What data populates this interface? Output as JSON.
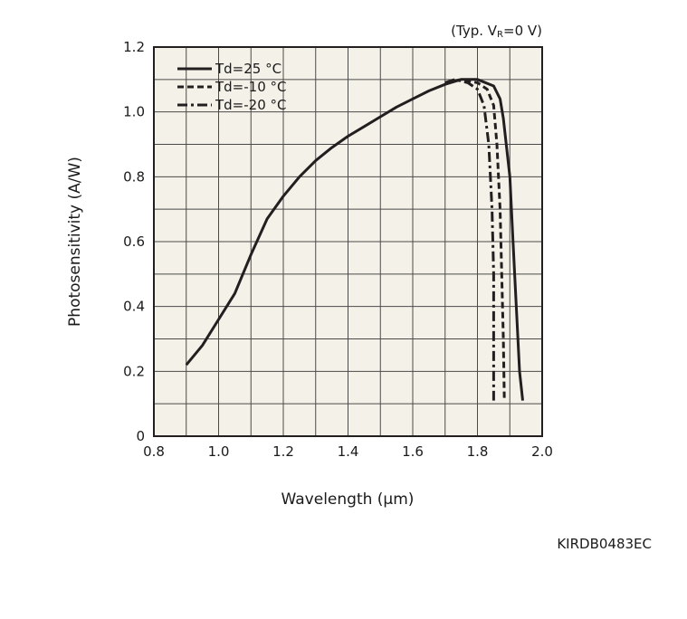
{
  "chart_data": {
    "type": "line",
    "title": "",
    "condition": {
      "prefix": "(Typ. V",
      "subscript": "R",
      "suffix": "=0 V)"
    },
    "xlabel": "Wavelength (µm)",
    "ylabel": "Photosensitivity (A/W)",
    "xlim": [
      0.8,
      2.0
    ],
    "ylim": [
      0,
      1.2
    ],
    "x_ticks": [
      0.8,
      1.0,
      1.2,
      1.4,
      1.6,
      1.8,
      2.0
    ],
    "x_tick_labels": [
      "0.8",
      "1.0",
      "1.2",
      "1.4",
      "1.6",
      "1.8",
      "2.0"
    ],
    "y_ticks": [
      0,
      0.2,
      0.4,
      0.6,
      0.8,
      1.0,
      1.2
    ],
    "y_tick_labels": [
      "0",
      "0.2",
      "0.4",
      "0.6",
      "0.8",
      "1.0",
      "1.2"
    ],
    "grid": true,
    "legend_position": "top-left",
    "background_color": "#f4f2e8",
    "line_color": "#231f20",
    "series": [
      {
        "name": "Td=25 °C",
        "style": "solid",
        "points": [
          [
            0.9,
            0.22
          ],
          [
            0.95,
            0.28
          ],
          [
            1.0,
            0.36
          ],
          [
            1.05,
            0.44
          ],
          [
            1.1,
            0.56
          ],
          [
            1.15,
            0.67
          ],
          [
            1.2,
            0.74
          ],
          [
            1.25,
            0.8
          ],
          [
            1.3,
            0.85
          ],
          [
            1.35,
            0.89
          ],
          [
            1.4,
            0.925
          ],
          [
            1.45,
            0.955
          ],
          [
            1.5,
            0.985
          ],
          [
            1.55,
            1.015
          ],
          [
            1.6,
            1.04
          ],
          [
            1.65,
            1.065
          ],
          [
            1.7,
            1.085
          ],
          [
            1.75,
            1.1
          ],
          [
            1.8,
            1.1
          ],
          [
            1.85,
            1.08
          ],
          [
            1.87,
            1.04
          ],
          [
            1.88,
            0.98
          ],
          [
            1.9,
            0.8
          ],
          [
            1.91,
            0.6
          ],
          [
            1.92,
            0.4
          ],
          [
            1.93,
            0.2
          ],
          [
            1.94,
            0.11
          ]
        ]
      },
      {
        "name": "Td=-10 °C",
        "style": "dashed",
        "points": [
          [
            1.7,
            1.09
          ],
          [
            1.75,
            1.1
          ],
          [
            1.8,
            1.09
          ],
          [
            1.83,
            1.07
          ],
          [
            1.85,
            1.02
          ],
          [
            1.86,
            0.9
          ],
          [
            1.87,
            0.7
          ],
          [
            1.875,
            0.5
          ],
          [
            1.88,
            0.3
          ],
          [
            1.883,
            0.11
          ]
        ]
      },
      {
        "name": "Td=-20 °C",
        "style": "dashdot",
        "points": [
          [
            1.7,
            1.09
          ],
          [
            1.73,
            1.1
          ],
          [
            1.77,
            1.09
          ],
          [
            1.8,
            1.07
          ],
          [
            1.82,
            1.02
          ],
          [
            1.835,
            0.9
          ],
          [
            1.845,
            0.7
          ],
          [
            1.85,
            0.5
          ],
          [
            1.85,
            0.3
          ],
          [
            1.85,
            0.11
          ]
        ]
      }
    ]
  },
  "figure_code": "KIRDB0483EC"
}
